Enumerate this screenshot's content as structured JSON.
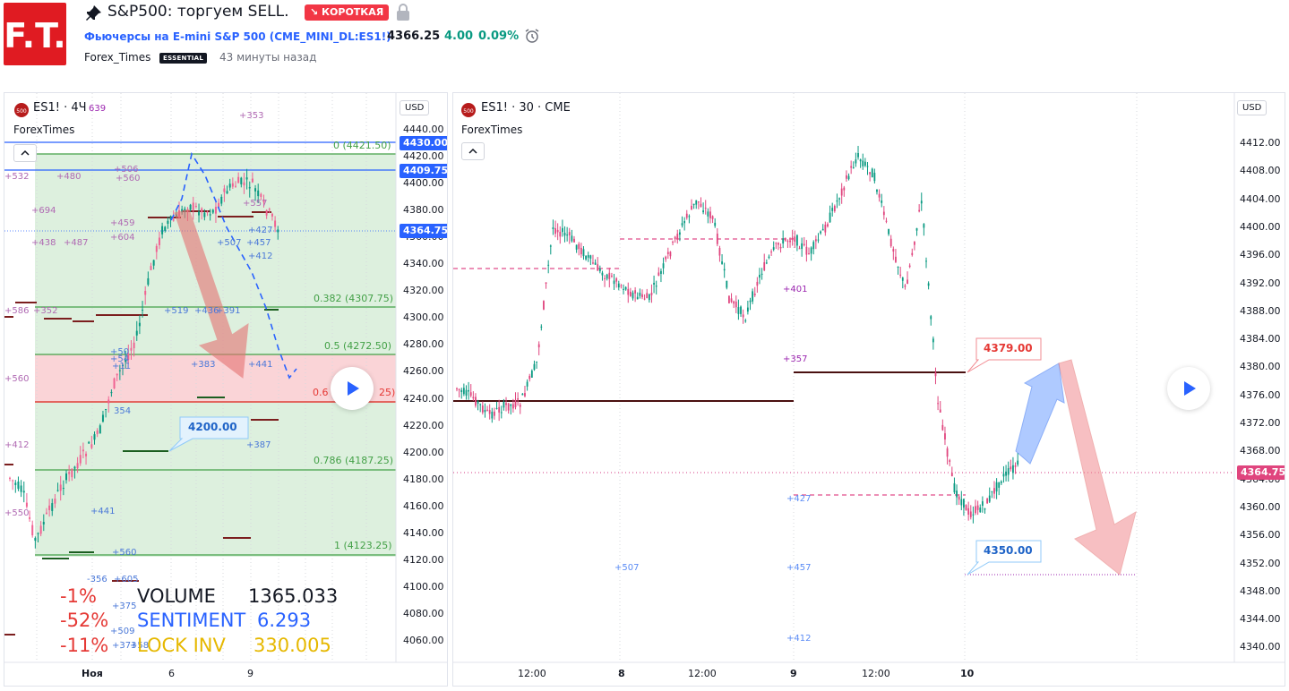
{
  "header": {
    "logo_text": "F.T.",
    "title": "S&P500: торгуем SELL.",
    "badge": "↘ КОРОТКАЯ",
    "symbol_link": "Фьючерсы на E-mini S&P 500 (CME_MINI_DL:ES1!)",
    "price": "4366.25",
    "change": "4.00",
    "change_pct": "0.09%",
    "author": "Forex_Times",
    "author_badge": "ESSENTIAL",
    "time_ago": "43 минуты назад"
  },
  "colors": {
    "brand": "#e01b22",
    "up": "#089981",
    "down": "#f23645",
    "link": "#2962ff",
    "green_zone": "#c8e6c9",
    "red_zone": "#ffcdd2"
  },
  "chart_left": {
    "symbol_label": "ES1! · 4Ч",
    "stray_value": "639",
    "watermark": "ForexTimes",
    "currency": "USD",
    "y_ticks": [
      "4440.00",
      "4420.00",
      "4400.00",
      "4380.00",
      "4360.00",
      "4340.00",
      "4320.00",
      "4300.00",
      "4280.00",
      "4260.00",
      "4240.00",
      "4220.00",
      "4200.00",
      "4180.00",
      "4160.00",
      "4140.00",
      "4120.00",
      "4100.00",
      "4080.00",
      "4060.00"
    ],
    "x_ticks": [
      "Ноя",
      "6",
      "9"
    ],
    "price_tags": [
      {
        "text": "4430.00",
        "kind": "blue"
      },
      {
        "text": "4409.75",
        "kind": "blue"
      },
      {
        "text": "4364.75",
        "kind": "blue"
      }
    ],
    "fib_levels": [
      "0 (4421.50)",
      "0.382 (4307.75)",
      "0.5 (4272.50)",
      "0.6",
      "25)",
      "0.786 (4187.25)",
      "1 (4123.25)"
    ],
    "callout": "4200.00",
    "annotations_purple": [
      "+353",
      "+532",
      "+480",
      "+506",
      "+560",
      "+694",
      "+459",
      "+604",
      "+438",
      "+487",
      "+557",
      "+586",
      "+352",
      "+560",
      "+412",
      "+550"
    ],
    "annotations_blue": [
      "+507",
      "+457",
      "+427",
      "+412",
      "+519",
      "+436",
      "+391",
      "+383",
      "+441",
      "+50",
      "+54",
      "+11",
      "354",
      "+387",
      "+441",
      "+560",
      "-356",
      "+605",
      "+375",
      "+509",
      "+373",
      "+58"
    ],
    "stats": [
      {
        "pct": "-1%",
        "label": "VOLUME",
        "value": "1365.033"
      },
      {
        "pct": "-52%",
        "label": "SENTIMENT",
        "value": "6.293"
      },
      {
        "pct": "-11%",
        "label": "LOCK INV",
        "value": "330.005"
      }
    ]
  },
  "chart_right": {
    "symbol_label": "ES1! · 30 · CME",
    "watermark": "ForexTimes",
    "currency": "USD",
    "y_ticks": [
      "4412.00",
      "4408.00",
      "4404.00",
      "4400.00",
      "4396.00",
      "4392.00",
      "4388.00",
      "4384.00",
      "4380.00",
      "4376.00",
      "4372.00",
      "4368.00",
      "4364.00",
      "4360.00",
      "4356.00",
      "4352.00",
      "4348.00",
      "4344.00",
      "4340.00"
    ],
    "x_ticks": [
      "12:00",
      "8",
      "12:00",
      "9",
      "12:00",
      "10"
    ],
    "price_tag": "4364.75",
    "callout_up": "4379.00",
    "callout_down": "4350.00",
    "annotations": [
      "+401",
      "+357",
      "+427",
      "+507",
      "+457",
      "+412"
    ]
  }
}
